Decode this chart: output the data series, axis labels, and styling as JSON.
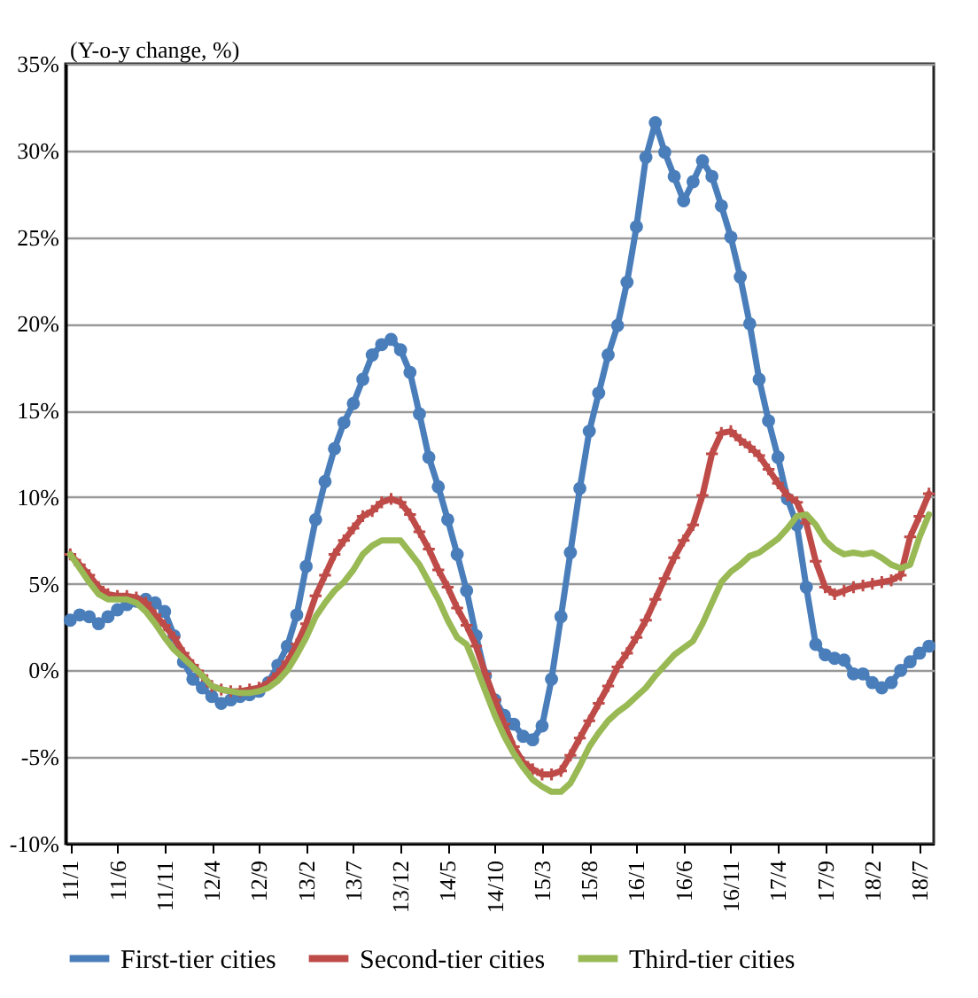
{
  "chart_data": {
    "type": "line",
    "ylabel": "(Y-o-y change, %)",
    "categories": [
      "11/1",
      null,
      null,
      null,
      null,
      "11/6",
      null,
      null,
      null,
      null,
      "11/11",
      null,
      null,
      null,
      null,
      "12/4",
      null,
      null,
      null,
      null,
      "12/9",
      null,
      null,
      null,
      null,
      "13/2",
      null,
      null,
      null,
      null,
      "13/7",
      null,
      null,
      null,
      null,
      "13/12",
      null,
      null,
      null,
      null,
      "14/5",
      null,
      null,
      null,
      null,
      "14/10",
      null,
      null,
      null,
      null,
      "15/3",
      null,
      null,
      null,
      null,
      "15/8",
      null,
      null,
      null,
      null,
      "16/1",
      null,
      null,
      null,
      null,
      "16/6",
      null,
      null,
      null,
      null,
      "16/11",
      null,
      null,
      null,
      null,
      "17/4",
      null,
      null,
      null,
      null,
      "17/9",
      null,
      null,
      null,
      null,
      "18/2",
      null,
      null,
      null,
      null,
      "18/7",
      null
    ],
    "series": [
      {
        "name": "First-tier cities",
        "color": "#4a7ebb",
        "marker": "circle",
        "values": [
          2.9,
          3.2,
          3.1,
          2.7,
          3.1,
          3.5,
          3.8,
          4.0,
          4.1,
          3.9,
          3.4,
          2.0,
          0.5,
          -0.5,
          -1.0,
          -1.5,
          -1.9,
          -1.7,
          -1.5,
          -1.4,
          -1.2,
          -0.7,
          0.3,
          1.4,
          3.2,
          6.0,
          8.7,
          10.9,
          12.8,
          14.3,
          15.4,
          16.8,
          18.2,
          18.8,
          19.1,
          18.5,
          17.2,
          14.8,
          12.3,
          10.6,
          8.7,
          6.7,
          4.6,
          2.0,
          -0.3,
          -1.7,
          -2.6,
          -3.1,
          -3.8,
          -4.0,
          -3.2,
          -0.5,
          3.1,
          6.8,
          10.5,
          13.8,
          16.0,
          18.2,
          19.9,
          22.4,
          25.6,
          29.6,
          31.6,
          29.9,
          28.5,
          27.1,
          28.2,
          29.4,
          28.5,
          26.8,
          25.0,
          22.7,
          20.0,
          16.8,
          14.4,
          12.3,
          9.9,
          8.4,
          4.8,
          1.5,
          0.9,
          0.7,
          0.6,
          -0.2,
          -0.2,
          -0.7,
          -1.0,
          -0.7,
          0.0,
          0.5,
          1.0,
          1.4
        ]
      },
      {
        "name": "Second-tier cities",
        "color": "#be4b48",
        "marker": "cross",
        "values": [
          6.7,
          6.1,
          5.5,
          4.8,
          4.4,
          4.3,
          4.3,
          4.2,
          3.9,
          3.2,
          2.6,
          1.9,
          1.0,
          0.3,
          -0.3,
          -0.9,
          -1.1,
          -1.2,
          -1.2,
          -1.1,
          -1.0,
          -0.7,
          -0.2,
          0.5,
          1.5,
          2.7,
          4.3,
          5.5,
          6.7,
          7.5,
          8.2,
          8.9,
          9.2,
          9.7,
          9.9,
          9.7,
          9.0,
          8.0,
          7.0,
          5.8,
          4.8,
          3.6,
          2.6,
          1.4,
          -0.2,
          -1.7,
          -3.1,
          -4.4,
          -5.3,
          -5.7,
          -6.0,
          -6.0,
          -5.8,
          -4.9,
          -3.9,
          -2.9,
          -1.9,
          -0.9,
          0.2,
          1.0,
          1.9,
          2.9,
          4.1,
          5.3,
          6.5,
          7.5,
          8.4,
          10.1,
          12.5,
          13.7,
          13.8,
          13.3,
          12.9,
          12.4,
          11.6,
          10.8,
          10.1,
          9.7,
          8.5,
          6.3,
          4.8,
          4.4,
          4.6,
          4.8,
          4.9,
          5.0,
          5.1,
          5.2,
          5.5,
          7.7,
          8.9,
          10.2
        ]
      },
      {
        "name": "Third-tier cities",
        "color": "#98b954",
        "marker": "none",
        "values": [
          6.7,
          5.9,
          5.1,
          4.4,
          4.1,
          4.1,
          4.1,
          3.9,
          3.4,
          2.7,
          1.9,
          1.2,
          0.7,
          0.2,
          -0.3,
          -0.9,
          -1.1,
          -1.2,
          -1.3,
          -1.3,
          -1.2,
          -1.0,
          -0.6,
          0.0,
          0.9,
          1.9,
          3.1,
          3.9,
          4.6,
          5.1,
          5.8,
          6.7,
          7.2,
          7.5,
          7.5,
          7.5,
          6.8,
          6.1,
          5.1,
          4.1,
          2.9,
          1.9,
          1.5,
          0.2,
          -1.2,
          -2.6,
          -3.8,
          -4.8,
          -5.6,
          -6.3,
          -6.7,
          -7.0,
          -7.0,
          -6.5,
          -5.5,
          -4.4,
          -3.6,
          -2.9,
          -2.4,
          -2.0,
          -1.5,
          -1.0,
          -0.3,
          0.3,
          0.9,
          1.3,
          1.7,
          2.7,
          3.9,
          5.1,
          5.7,
          6.1,
          6.6,
          6.8,
          7.2,
          7.6,
          8.2,
          8.9,
          9.0,
          8.4,
          7.5,
          7.0,
          6.7,
          6.8,
          6.7,
          6.8,
          6.5,
          6.1,
          5.9,
          6.1,
          7.7,
          9.0
        ]
      }
    ],
    "ylim": [
      -10,
      35
    ],
    "yticks": [
      {
        "value": -10,
        "label": "-10%"
      },
      {
        "value": -5,
        "label": "-5%"
      },
      {
        "value": 0,
        "label": "0%"
      },
      {
        "value": 5,
        "label": "5%"
      },
      {
        "value": 10,
        "label": "10%"
      },
      {
        "value": 15,
        "label": "15%"
      },
      {
        "value": 20,
        "label": "20%"
      },
      {
        "value": 25,
        "label": "25%"
      },
      {
        "value": 30,
        "label": "30%"
      },
      {
        "value": 35,
        "label": "35%"
      }
    ],
    "grid": "y",
    "legend": "bottom",
    "line_style": "solid"
  }
}
